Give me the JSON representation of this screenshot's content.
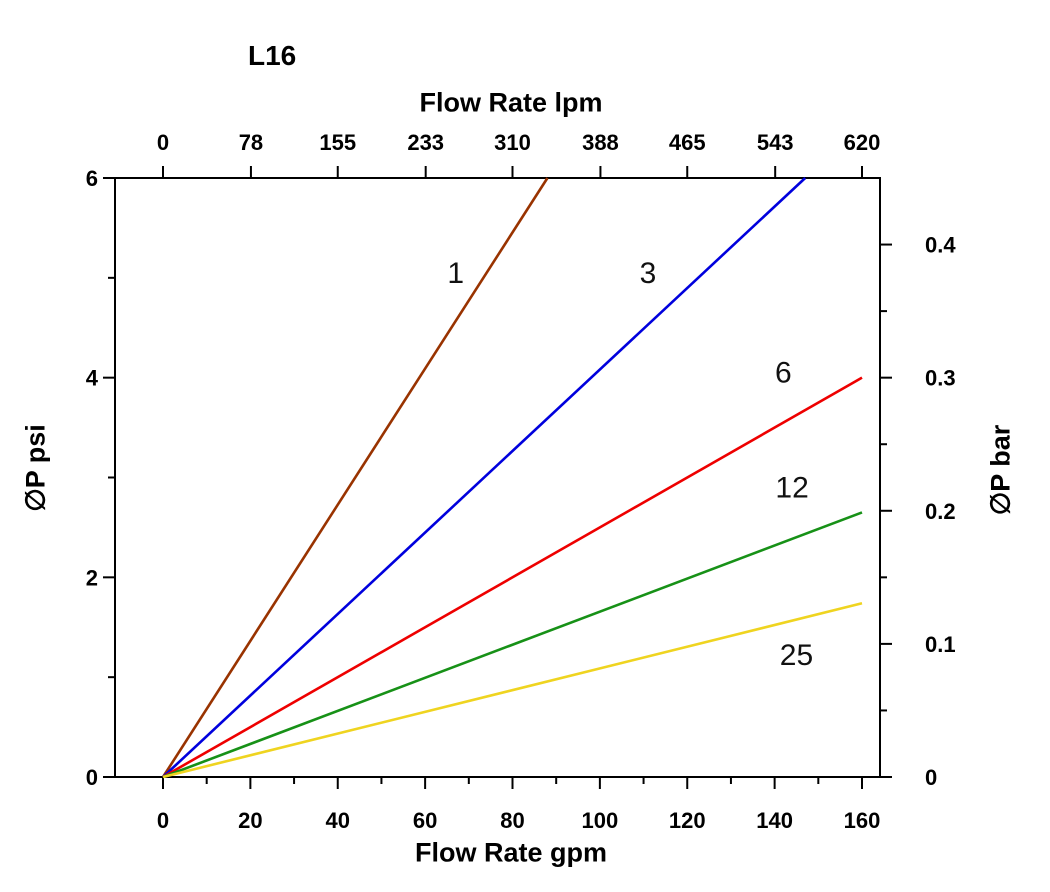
{
  "page": {
    "background": "#ffffff"
  },
  "chart_data": {
    "type": "line",
    "title": "L16",
    "grid": false,
    "legend": "none (inline curve labels)",
    "top_axis": {
      "label": "Flow Rate lpm",
      "range": [
        0,
        620
      ],
      "ticks": [
        0,
        78,
        155,
        233,
        310,
        388,
        465,
        543,
        620
      ]
    },
    "bottom_axis": {
      "label": "Flow Rate gpm",
      "range": [
        0,
        160
      ],
      "ticks": [
        0,
        20,
        40,
        60,
        80,
        100,
        120,
        140,
        160
      ],
      "minor_ticks": [
        10,
        30,
        50,
        70,
        90,
        110,
        130,
        150
      ]
    },
    "left_axis": {
      "label": "∅P psi",
      "range": [
        0,
        6
      ],
      "ticks": [
        0,
        2,
        4,
        6
      ],
      "minor_ticks": [
        1,
        3,
        5
      ]
    },
    "right_axis": {
      "label": "∅P bar",
      "range": [
        0,
        0.45
      ],
      "ticks": [
        0,
        0.1,
        0.2,
        0.3,
        0.4
      ],
      "minor_ticks": [
        0.05,
        0.15,
        0.25,
        0.35
      ]
    },
    "series": [
      {
        "name": "1",
        "color": "#993300",
        "points": [
          [
            0,
            0
          ],
          [
            88,
            6
          ]
        ],
        "label_at": [
          67,
          5.05
        ]
      },
      {
        "name": "3",
        "color": "#0000DD",
        "points": [
          [
            0,
            0
          ],
          [
            147,
            6
          ]
        ],
        "label_at": [
          111,
          5.05
        ]
      },
      {
        "name": "6",
        "color": "#EE0000",
        "points": [
          [
            0,
            0
          ],
          [
            160,
            4.0
          ]
        ],
        "label_at": [
          142,
          4.05
        ]
      },
      {
        "name": "12",
        "color": "#179117",
        "points": [
          [
            0,
            0
          ],
          [
            160,
            2.65
          ]
        ],
        "label_at": [
          144,
          2.9
        ]
      },
      {
        "name": "25",
        "color": "#EFD420",
        "points": [
          [
            0,
            0
          ],
          [
            160,
            1.74
          ]
        ],
        "label_at": [
          145,
          1.22
        ]
      }
    ]
  }
}
